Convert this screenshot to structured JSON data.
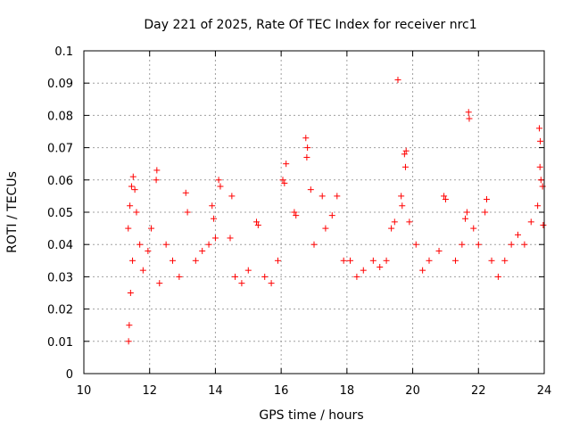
{
  "chart_data": {
    "type": "scatter",
    "title": "Day 221 of 2025, Rate Of TEC Index for receiver nrc1",
    "xlabel": "GPS time / hours",
    "ylabel": "ROTI / TECUs",
    "xlim": [
      10,
      24
    ],
    "ylim": [
      0,
      0.1
    ],
    "xticks": [
      "10",
      "12",
      "14",
      "16",
      "18",
      "20",
      "22",
      "24"
    ],
    "yticks": [
      "0",
      "0.01",
      "0.02",
      "0.03",
      "0.04",
      "0.05",
      "0.06",
      "0.07",
      "0.08",
      "0.09",
      "0.1"
    ],
    "grid": true,
    "marker": "plus",
    "color": "#ff0000",
    "series": [
      {
        "points": [
          [
            11.35,
            0.045
          ],
          [
            11.4,
            0.052
          ],
          [
            11.45,
            0.058
          ],
          [
            11.5,
            0.061
          ],
          [
            11.55,
            0.057
          ],
          [
            11.6,
            0.05
          ],
          [
            11.48,
            0.035
          ],
          [
            11.42,
            0.025
          ],
          [
            11.38,
            0.015
          ],
          [
            11.36,
            0.01
          ],
          [
            11.7,
            0.04
          ],
          [
            11.8,
            0.032
          ],
          [
            11.95,
            0.038
          ],
          [
            12.05,
            0.045
          ],
          [
            12.2,
            0.06
          ],
          [
            12.22,
            0.063
          ],
          [
            12.3,
            0.028
          ],
          [
            12.5,
            0.04
          ],
          [
            12.7,
            0.035
          ],
          [
            12.9,
            0.03
          ],
          [
            13.1,
            0.056
          ],
          [
            13.15,
            0.05
          ],
          [
            13.4,
            0.035
          ],
          [
            13.6,
            0.038
          ],
          [
            13.8,
            0.04
          ],
          [
            13.9,
            0.052
          ],
          [
            13.95,
            0.048
          ],
          [
            14.0,
            0.042
          ],
          [
            14.1,
            0.06
          ],
          [
            14.15,
            0.058
          ],
          [
            14.45,
            0.042
          ],
          [
            14.5,
            0.055
          ],
          [
            14.6,
            0.03
          ],
          [
            14.8,
            0.028
          ],
          [
            15.0,
            0.032
          ],
          [
            15.25,
            0.047
          ],
          [
            15.3,
            0.046
          ],
          [
            15.5,
            0.03
          ],
          [
            15.7,
            0.028
          ],
          [
            15.9,
            0.035
          ],
          [
            16.05,
            0.06
          ],
          [
            16.1,
            0.059
          ],
          [
            16.15,
            0.065
          ],
          [
            16.4,
            0.05
          ],
          [
            16.45,
            0.049
          ],
          [
            16.75,
            0.073
          ],
          [
            16.8,
            0.07
          ],
          [
            16.78,
            0.067
          ],
          [
            16.9,
            0.057
          ],
          [
            17.0,
            0.04
          ],
          [
            17.25,
            0.055
          ],
          [
            17.35,
            0.045
          ],
          [
            17.55,
            0.049
          ],
          [
            17.7,
            0.055
          ],
          [
            17.9,
            0.035
          ],
          [
            18.1,
            0.035
          ],
          [
            18.3,
            0.03
          ],
          [
            18.5,
            0.032
          ],
          [
            18.8,
            0.035
          ],
          [
            19.0,
            0.033
          ],
          [
            19.2,
            0.035
          ],
          [
            19.35,
            0.045
          ],
          [
            19.45,
            0.047
          ],
          [
            19.55,
            0.091
          ],
          [
            19.65,
            0.055
          ],
          [
            19.68,
            0.052
          ],
          [
            19.75,
            0.068
          ],
          [
            19.8,
            0.069
          ],
          [
            19.78,
            0.064
          ],
          [
            19.9,
            0.047
          ],
          [
            20.1,
            0.04
          ],
          [
            20.3,
            0.032
          ],
          [
            20.5,
            0.035
          ],
          [
            20.8,
            0.038
          ],
          [
            20.95,
            0.055
          ],
          [
            21.0,
            0.054
          ],
          [
            21.3,
            0.035
          ],
          [
            21.5,
            0.04
          ],
          [
            21.6,
            0.048
          ],
          [
            21.65,
            0.05
          ],
          [
            21.7,
            0.081
          ],
          [
            21.72,
            0.079
          ],
          [
            21.85,
            0.045
          ],
          [
            22.0,
            0.04
          ],
          [
            22.2,
            0.05
          ],
          [
            22.25,
            0.054
          ],
          [
            22.4,
            0.035
          ],
          [
            22.6,
            0.03
          ],
          [
            22.8,
            0.035
          ],
          [
            23.0,
            0.04
          ],
          [
            23.2,
            0.043
          ],
          [
            23.4,
            0.04
          ],
          [
            23.6,
            0.047
          ],
          [
            23.8,
            0.052
          ],
          [
            23.85,
            0.076
          ],
          [
            23.88,
            0.072
          ],
          [
            23.87,
            0.064
          ],
          [
            23.9,
            0.06
          ],
          [
            23.95,
            0.058
          ],
          [
            23.97,
            0.046
          ]
        ]
      }
    ]
  }
}
